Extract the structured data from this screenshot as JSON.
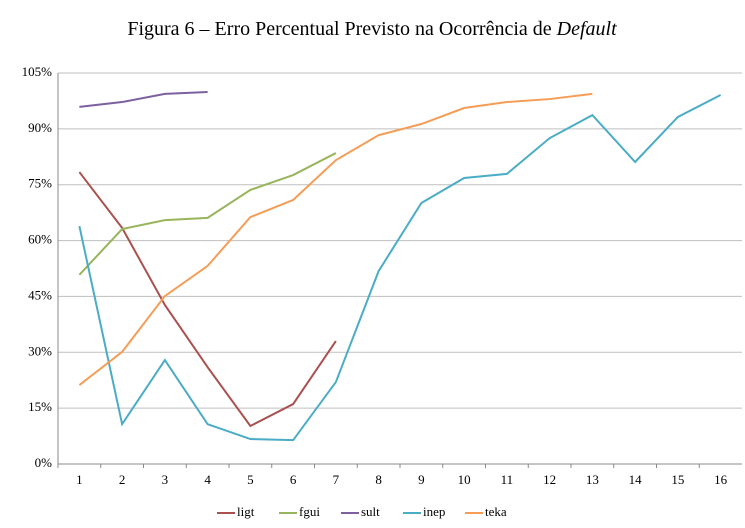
{
  "chart_data": {
    "type": "line",
    "title": "Figura 6 – Erro Percentual Previsto na Ocorrência de",
    "title_emphasis": "Default",
    "categories": [
      "1",
      "2",
      "3",
      "4",
      "5",
      "6",
      "7",
      "8",
      "9",
      "10",
      "11",
      "12",
      "13",
      "14",
      "15",
      "16"
    ],
    "series": [
      {
        "name": "ligt",
        "color": "#a9514e",
        "values": [
          78.4,
          63.4,
          42.7,
          26.0,
          10.2,
          16.1,
          33.0,
          null,
          null,
          null,
          null,
          null,
          null,
          null,
          null,
          null
        ]
      },
      {
        "name": "fgui",
        "color": "#98b55b",
        "values": [
          50.8,
          63.1,
          65.5,
          66.1,
          73.6,
          77.6,
          83.5,
          null,
          null,
          null,
          null,
          null,
          null,
          null,
          null,
          null
        ]
      },
      {
        "name": "sult",
        "color": "#7d60a0",
        "values": [
          95.9,
          97.2,
          99.4,
          99.9,
          null,
          null,
          null,
          null,
          null,
          null,
          null,
          null,
          null,
          null,
          null,
          null
        ]
      },
      {
        "name": "inep",
        "color": "#4aacc5",
        "values": [
          63.9,
          10.7,
          27.9,
          10.7,
          6.7,
          6.4,
          22.0,
          51.8,
          70.1,
          76.8,
          77.9,
          87.5,
          93.7,
          81.1,
          93.2,
          99.1
        ]
      },
      {
        "name": "teka",
        "color": "#f59d56",
        "values": [
          21.2,
          30.1,
          45.1,
          53.2,
          66.3,
          70.9,
          81.6,
          88.3,
          91.3,
          95.6,
          97.2,
          98.0,
          99.4,
          null,
          null,
          null
        ]
      }
    ],
    "ylim": [
      0,
      105
    ],
    "yticks": [
      {
        "value": 0,
        "label": "0%"
      },
      {
        "value": 15,
        "label": "15%"
      },
      {
        "value": 30,
        "label": "30%"
      },
      {
        "value": 45,
        "label": "45%"
      },
      {
        "value": 60,
        "label": "60%"
      },
      {
        "value": 75,
        "label": "75%"
      },
      {
        "value": 90,
        "label": "90%"
      },
      {
        "value": 105,
        "label": "105%"
      }
    ],
    "grid": true,
    "legend": "bottom"
  }
}
